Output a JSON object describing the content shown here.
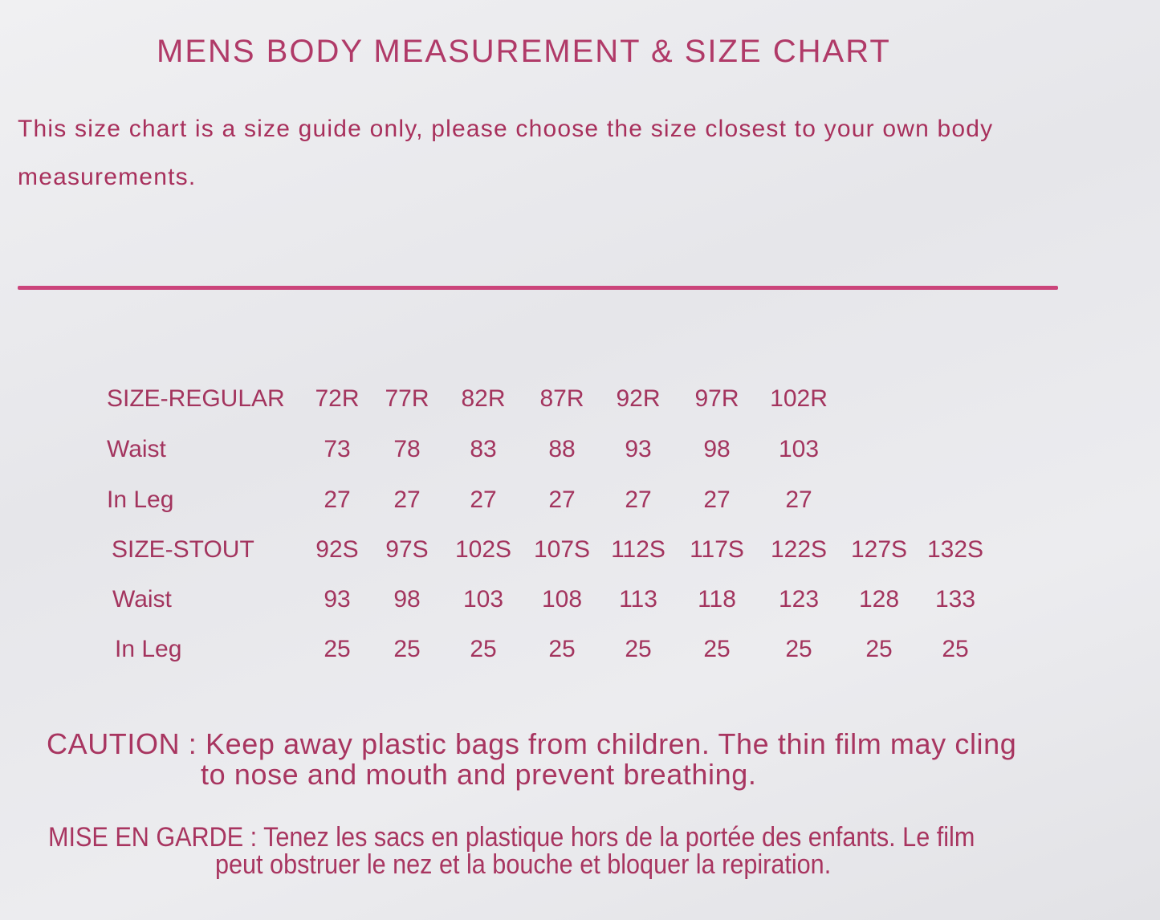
{
  "title": "MENS BODY MEASUREMENT & SIZE CHART",
  "intro": {
    "line1": "This size chart is a size guide only, please choose the size closest to your own body",
    "line2": "measurements."
  },
  "size_table": {
    "rows": [
      {
        "label": "SIZE-REGULAR",
        "values": [
          "72R",
          "77R",
          "82R",
          "87R",
          "92R",
          "97R",
          "102R"
        ]
      },
      {
        "label": "Waist",
        "values": [
          "73",
          "78",
          "83",
          "88",
          "93",
          "98",
          "103"
        ]
      },
      {
        "label": "In Leg",
        "values": [
          "27",
          "27",
          "27",
          "27",
          "27",
          "27",
          "27"
        ]
      },
      {
        "label": "SIZE-STOUT",
        "values": [
          "92S",
          "97S",
          "102S",
          "107S",
          "112S",
          "117S",
          "122S",
          "127S",
          "132S"
        ]
      },
      {
        "label": "Waist",
        "values": [
          "93",
          "98",
          "103",
          "108",
          "113",
          "118",
          "123",
          "128",
          "133"
        ]
      },
      {
        "label": "In Leg",
        "values": [
          "25",
          "25",
          "25",
          "25",
          "25",
          "25",
          "25",
          "25",
          "25"
        ]
      }
    ]
  },
  "caution": {
    "line1": "CAUTION : Keep away plastic bags from children. The thin film may cling",
    "line2": "to nose and mouth and prevent breathing."
  },
  "mise_en_garde": {
    "line1": "MISE EN GARDE : Tenez les sacs en plastique hors de la portée des enfants. Le film",
    "line2": "peut obstruer le nez et la bouche et bloquer la repiration."
  },
  "colors": {
    "ink": "#a3345e",
    "rule": "#c8326e",
    "background": "#ececef"
  }
}
